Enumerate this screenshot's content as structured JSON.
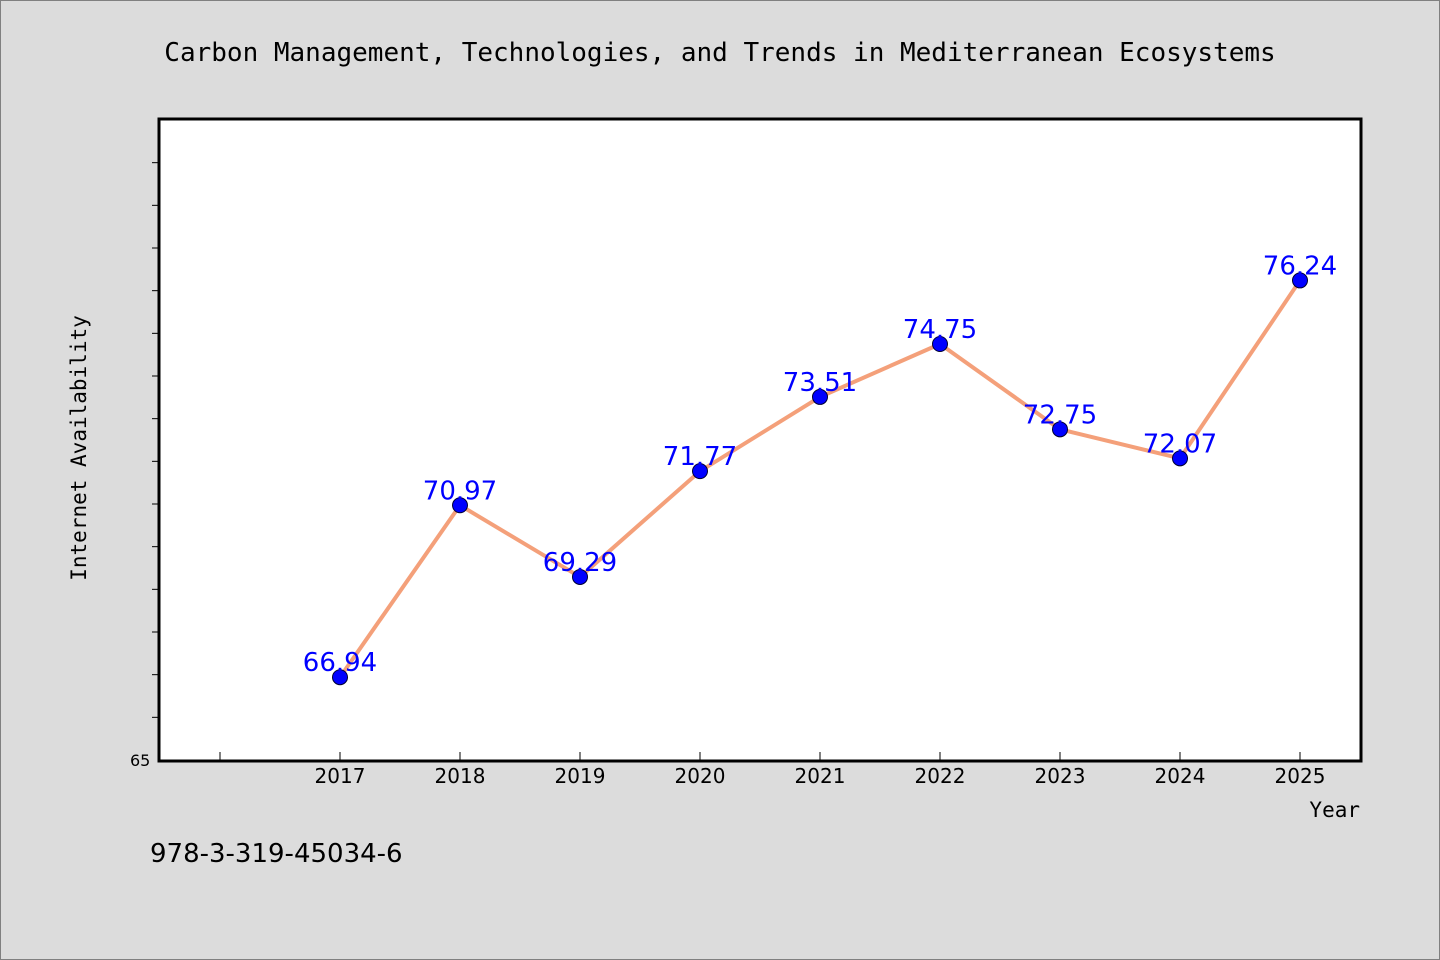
{
  "chart_data": {
    "type": "line",
    "title": "Carbon Management, Technologies, and Trends in Mediterranean Ecosystems",
    "xlabel": "Year",
    "ylabel": "Internet Availability",
    "categories": [
      "2017",
      "2018",
      "2019",
      "2020",
      "2021",
      "2022",
      "2023",
      "2024",
      "2025"
    ],
    "series": [
      {
        "values": [
          66.94,
          70.97,
          69.29,
          71.77,
          73.51,
          74.75,
          72.75,
          72.07,
          76.24
        ],
        "data_labels": [
          "66.94",
          "70.97",
          "69.29",
          "71.77",
          "73.51",
          "74.75",
          "72.75",
          "72.07",
          "76.24"
        ]
      }
    ],
    "ylim": [
      65,
      80
    ],
    "y_tick_labels": [
      "65"
    ],
    "line_color": "#f4a07a",
    "marker_color": "#0000ff",
    "label_color": "#0000ff",
    "grid": false
  },
  "footer": {
    "isbn": "978-3-319-45034-6"
  }
}
